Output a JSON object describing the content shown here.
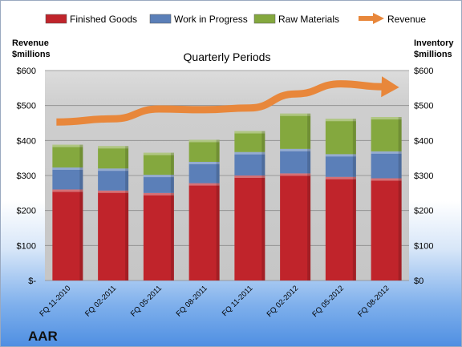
{
  "chart_data": {
    "type": "bar",
    "stacked": true,
    "title": "Quarterly Periods",
    "brand": "AAR",
    "left_axis_title": [
      "Revenue",
      "$millions"
    ],
    "right_axis_title": [
      "Inventory",
      "$millions"
    ],
    "left_tick_labels": [
      "$-",
      "$100",
      "$200",
      "$300",
      "$400",
      "$500",
      "$600"
    ],
    "right_tick_labels": [
      "$0",
      "$100",
      "$200",
      "$300",
      "$400",
      "$500",
      "$600"
    ],
    "ylim": [
      0,
      600
    ],
    "grid": true,
    "legend_position": "top",
    "categories": [
      "FQ 11-2010",
      "FQ 02-2011",
      "FQ 05-2011",
      "FQ 08-2011",
      "FQ 11-2011",
      "FQ 02-2012",
      "FQ 05-2012",
      "FQ 08-2012"
    ],
    "series": [
      {
        "name": "Finished Goods",
        "kind": "bar",
        "color": "#c0242b",
        "values": [
          260,
          257,
          250,
          278,
          300,
          306,
          296,
          292
        ]
      },
      {
        "name": "Work in Progress",
        "kind": "bar",
        "color": "#5b7fb8",
        "values": [
          63,
          63,
          52,
          61,
          67,
          70,
          65,
          77
        ]
      },
      {
        "name": "Raw Materials",
        "kind": "bar",
        "color": "#84a83e",
        "values": [
          65,
          64,
          63,
          63,
          60,
          101,
          101,
          98
        ]
      },
      {
        "name": "Revenue",
        "kind": "line",
        "color": "#e8873b",
        "values": [
          453,
          462,
          490,
          488,
          493,
          533,
          562,
          552
        ]
      }
    ]
  }
}
